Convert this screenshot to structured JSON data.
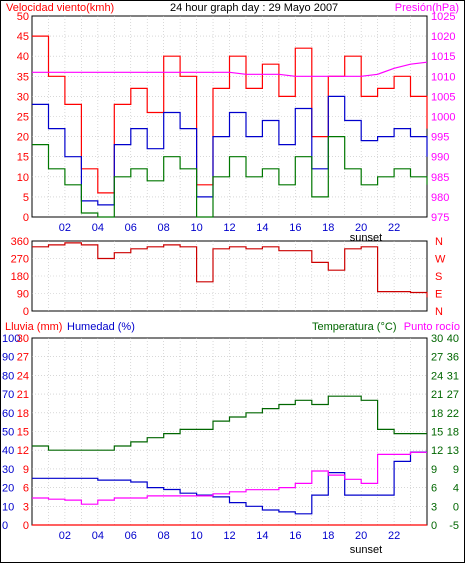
{
  "chart_data": [
    {
      "type": "line",
      "title": "24 hour graph day : 29 Mayo 2007",
      "left_axis_label": "Velocidad viento(kmh)",
      "right_axis_label": "Presión(hPa)",
      "x_ticks": [
        "02",
        "04",
        "06",
        "08",
        "10",
        "12",
        "14",
        "16",
        "18",
        "20",
        "22"
      ],
      "x_note": "sunset",
      "y_left_ticks": [
        0,
        5,
        10,
        15,
        20,
        25,
        30,
        35,
        40,
        45,
        50
      ],
      "y_right_ticks": [
        975,
        980,
        985,
        990,
        995,
        1000,
        1005,
        1010,
        1015,
        1020,
        1025
      ],
      "ylim_left": [
        0,
        50
      ],
      "ylim_right": [
        975,
        1025
      ],
      "grid": true,
      "colors": {
        "gust": "#ff0000",
        "average": "#0000cc",
        "min": "#007700",
        "pressure": "#ff00ff"
      },
      "x_hours": [
        0,
        1,
        2,
        3,
        4,
        5,
        6,
        7,
        8,
        9,
        10,
        11,
        12,
        13,
        14,
        15,
        16,
        17,
        18,
        19,
        20,
        21,
        22,
        23,
        24
      ],
      "series": [
        {
          "key": "gust",
          "color": "#ff0000",
          "values": [
            45,
            35,
            28,
            12,
            6,
            28,
            32,
            26,
            40,
            35,
            8,
            32,
            40,
            32,
            38,
            30,
            42,
            20,
            35,
            40,
            30,
            32,
            35,
            30,
            22
          ]
        },
        {
          "key": "average",
          "color": "#0000cc",
          "values": [
            28,
            22,
            15,
            4,
            3,
            18,
            22,
            17,
            26,
            22,
            5,
            20,
            26,
            20,
            24,
            18,
            27,
            12,
            30,
            24,
            19,
            20,
            22,
            20,
            15
          ]
        },
        {
          "key": "min",
          "color": "#007700",
          "values": [
            18,
            12,
            8,
            1,
            0,
            10,
            12,
            9,
            15,
            12,
            0,
            10,
            15,
            10,
            12,
            8,
            15,
            5,
            20,
            12,
            8,
            10,
            12,
            10,
            8
          ]
        },
        {
          "key": "pressure",
          "axis": "right",
          "color": "#ff00ff",
          "values": [
            1011,
            1011,
            1011,
            1011,
            1011,
            1011,
            1011,
            1011,
            1011,
            1011,
            1011,
            1011,
            1011,
            1010.5,
            1010.5,
            1010.5,
            1010,
            1010,
            1010,
            1010,
            1010,
            1010.5,
            1012,
            1013,
            1013.5
          ]
        }
      ]
    },
    {
      "type": "line",
      "y_ticks": [
        0,
        90,
        180,
        270,
        360
      ],
      "ylim": [
        0,
        360
      ],
      "right_labels": [
        "N",
        "W",
        "S",
        "E",
        "N"
      ],
      "x_ticks": [
        "02",
        "04",
        "06",
        "08",
        "10",
        "12",
        "14",
        "16",
        "18",
        "20",
        "22"
      ],
      "grid": true,
      "colors": {
        "direction": "#cc0000"
      },
      "x_hours": [
        0,
        1,
        2,
        3,
        4,
        5,
        6,
        7,
        8,
        9,
        10,
        11,
        12,
        13,
        14,
        15,
        16,
        17,
        18,
        19,
        20,
        21,
        22,
        23,
        24
      ],
      "series": [
        {
          "key": "direction",
          "color": "#cc0000",
          "values": [
            330,
            340,
            350,
            340,
            270,
            300,
            320,
            330,
            340,
            330,
            150,
            320,
            330,
            320,
            330,
            310,
            310,
            250,
            210,
            320,
            330,
            100,
            100,
            95,
            70
          ]
        }
      ]
    },
    {
      "type": "line",
      "left_labels": {
        "rain": "Lluvia (mm)",
        "humidity": "Humedad (%)"
      },
      "right_labels": {
        "temperature": "Temperatura (°C)",
        "dewpoint": "Punto rocío"
      },
      "y_rain_ticks": [
        0,
        3,
        6,
        9,
        12,
        15,
        18,
        21,
        24,
        27,
        30
      ],
      "y_humidity_ticks": [
        0,
        10,
        20,
        30,
        40,
        50,
        60,
        70,
        80,
        90,
        100
      ],
      "y_temp_left_ticks": [
        0,
        3,
        6,
        9,
        12,
        15,
        18,
        21,
        24,
        27,
        30
      ],
      "y_temp_right_ticks": [
        -5,
        0,
        4,
        9,
        13,
        18,
        22,
        27,
        31,
        36,
        40
      ],
      "ylim_humidity": [
        0,
        100
      ],
      "ylim_temp": [
        -5,
        40
      ],
      "x_ticks": [
        "02",
        "04",
        "06",
        "08",
        "10",
        "12",
        "14",
        "16",
        "18",
        "20",
        "22"
      ],
      "x_note": "sunset",
      "grid": true,
      "colors": {
        "rain": "#ff0000",
        "humidity": "#0000cc",
        "temperature": "#006600",
        "dewpoint": "#ff00ff"
      },
      "x_hours": [
        0,
        1,
        2,
        3,
        4,
        5,
        6,
        7,
        8,
        9,
        10,
        11,
        12,
        13,
        14,
        15,
        16,
        17,
        18,
        19,
        20,
        21,
        22,
        23,
        24
      ],
      "series": [
        {
          "key": "rain",
          "color": "#ff0000",
          "values": [
            0,
            0,
            0,
            0,
            0,
            0,
            0,
            0,
            0,
            0,
            0,
            0,
            0,
            0,
            0,
            0,
            0,
            0,
            0,
            0,
            0,
            0,
            0,
            0,
            0
          ]
        },
        {
          "key": "humidity",
          "color": "#0000cc",
          "values": [
            25,
            25,
            25,
            25,
            24,
            24,
            23,
            20,
            19,
            17,
            16,
            15,
            12,
            10,
            8,
            7,
            6,
            16,
            28,
            16,
            16,
            16,
            34,
            39,
            39
          ]
        },
        {
          "key": "temperature",
          "color": "#006600",
          "values": [
            14,
            13,
            13,
            13,
            13,
            14,
            15,
            16,
            17,
            18,
            18,
            20,
            21,
            22,
            23,
            24,
            25,
            24,
            26,
            26,
            25,
            18,
            17,
            17,
            17
          ]
        },
        {
          "key": "dewpoint",
          "color": "#ff00ff",
          "values": [
            1.5,
            1.2,
            1,
            0,
            1,
            1.5,
            1.5,
            2,
            2,
            2,
            2,
            2.5,
            3,
            3.5,
            3.5,
            4,
            5,
            8,
            7,
            6,
            5,
            12,
            12,
            12.5,
            12.5
          ]
        }
      ]
    }
  ]
}
